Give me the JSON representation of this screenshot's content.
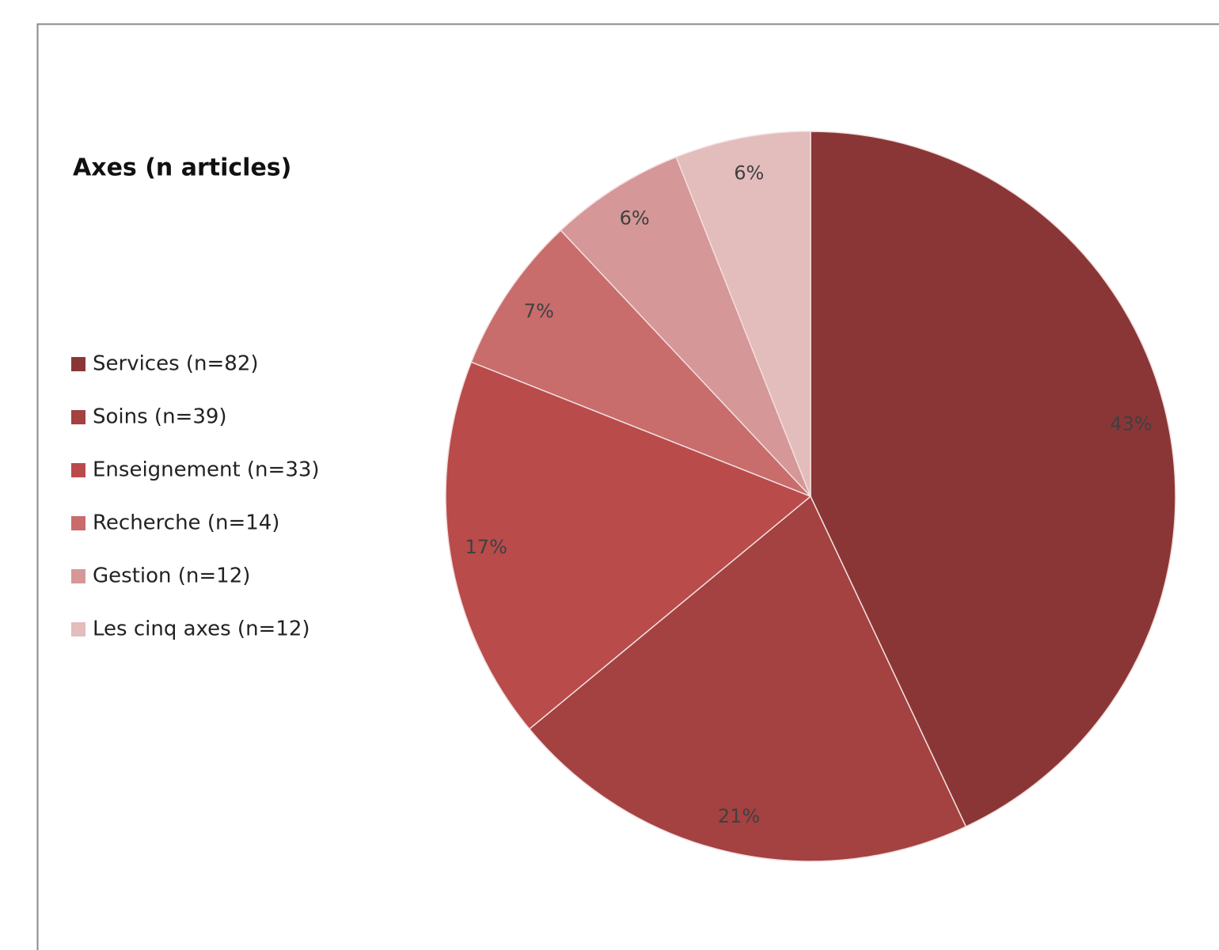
{
  "chart_data": {
    "type": "pie",
    "legend_title": "Axes (n articles)",
    "categories": [
      "Services (n=82)",
      "Soins (n=39)",
      "Enseignement (n=33)",
      "Recherche (n=14)",
      "Gestion (n=12)",
      "Les cinq axes (n=12)"
    ],
    "values": [
      43,
      21,
      17,
      7,
      6,
      6
    ],
    "value_labels": [
      "43%",
      "21%",
      "17%",
      "7%",
      "6%",
      "6%"
    ],
    "colors": [
      "#8b3636",
      "#a44141",
      "#b94b4b",
      "#c86c6c",
      "#d59797",
      "#e3bcbc"
    ],
    "legend": "left"
  }
}
